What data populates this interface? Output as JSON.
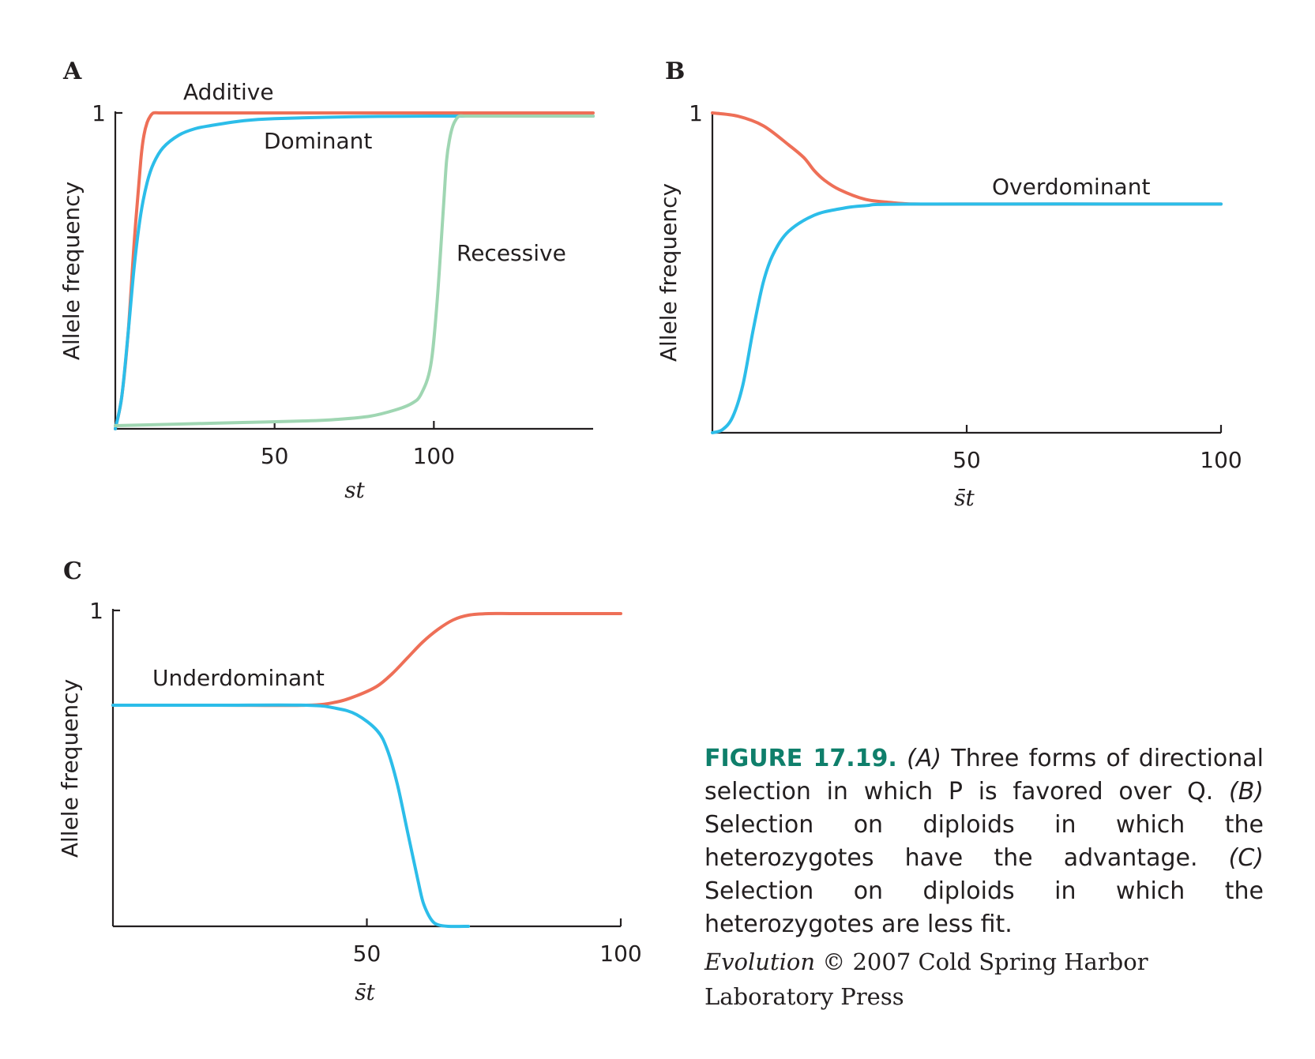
{
  "colors": {
    "orange": "#ee6f57",
    "blue": "#2cbde9",
    "green": "#9fd6b2",
    "axis": "#231f20",
    "caption_heading": "#0f7f6b"
  },
  "chart_data": [
    {
      "panel": "A",
      "type": "line",
      "ylabel": "Allele frequency",
      "xlabel": "st",
      "xlim": [
        0,
        150
      ],
      "ylim": [
        0,
        1
      ],
      "xticks": [
        50,
        100
      ],
      "yticks": [
        1
      ],
      "grid": false,
      "series": [
        {
          "name": "Additive",
          "color": "orange",
          "x": [
            0,
            2,
            4,
            6,
            8,
            9,
            10,
            11,
            12,
            14,
            16,
            20,
            30,
            50,
            100,
            150
          ],
          "y": [
            0.0,
            0.1,
            0.3,
            0.6,
            0.85,
            0.93,
            0.97,
            0.99,
            1.0,
            1.0,
            1.0,
            1.0,
            1.0,
            1.0,
            1.0,
            1.0
          ]
        },
        {
          "name": "Dominant",
          "color": "blue",
          "x": [
            0,
            2,
            4,
            6,
            8,
            10,
            12,
            15,
            20,
            25,
            30,
            40,
            50,
            75,
            100,
            150
          ],
          "y": [
            0.0,
            0.1,
            0.3,
            0.52,
            0.68,
            0.78,
            0.84,
            0.89,
            0.93,
            0.95,
            0.96,
            0.975,
            0.982,
            0.988,
            0.99,
            0.99
          ]
        },
        {
          "name": "Recessive",
          "color": "green",
          "x": [
            0,
            20,
            40,
            60,
            70,
            80,
            88,
            93,
            96,
            99,
            101,
            103,
            104,
            105,
            106,
            107,
            108,
            110,
            115,
            150
          ],
          "y": [
            0.01,
            0.015,
            0.02,
            0.025,
            0.03,
            0.04,
            0.06,
            0.08,
            0.11,
            0.2,
            0.4,
            0.7,
            0.85,
            0.92,
            0.96,
            0.98,
            0.99,
            0.99,
            0.99,
            0.99
          ]
        }
      ]
    },
    {
      "panel": "B",
      "type": "line",
      "ylabel": "Allele frequency",
      "xlabel": "s̄t",
      "xlim": [
        0,
        100
      ],
      "ylim": [
        0,
        1
      ],
      "xticks": [
        50,
        100
      ],
      "yticks": [
        1
      ],
      "grid": false,
      "series": [
        {
          "name": "Overdominant",
          "color": "orange",
          "x": [
            0,
            5,
            10,
            15,
            18,
            20,
            22,
            25,
            30,
            35,
            40,
            50,
            100
          ],
          "y": [
            1.0,
            0.99,
            0.96,
            0.9,
            0.86,
            0.82,
            0.79,
            0.76,
            0.73,
            0.72,
            0.715,
            0.715,
            0.715
          ]
        },
        {
          "color": "blue",
          "x": [
            0,
            2,
            4,
            6,
            8,
            10,
            12,
            15,
            20,
            25,
            30,
            40,
            100
          ],
          "y": [
            0.0,
            0.01,
            0.05,
            0.15,
            0.32,
            0.47,
            0.56,
            0.63,
            0.68,
            0.7,
            0.71,
            0.715,
            0.715
          ]
        }
      ]
    },
    {
      "panel": "C",
      "type": "line",
      "ylabel": "Allele frequency",
      "xlabel": "s̄t",
      "xlim": [
        0,
        100
      ],
      "ylim": [
        0,
        1
      ],
      "xticks": [
        50,
        100
      ],
      "yticks": [
        1
      ],
      "grid": false,
      "series": [
        {
          "name": "Underdominant",
          "color": "orange",
          "x": [
            0,
            20,
            38,
            44,
            48,
            52,
            55,
            58,
            61,
            64,
            67,
            70,
            74,
            80,
            100
          ],
          "y": [
            0.7,
            0.7,
            0.7,
            0.71,
            0.73,
            0.76,
            0.8,
            0.85,
            0.9,
            0.94,
            0.97,
            0.985,
            0.99,
            0.99,
            0.99
          ]
        },
        {
          "color": "blue",
          "x": [
            0,
            20,
            38,
            44,
            48,
            52,
            54,
            56,
            58,
            60,
            61,
            62,
            63,
            64,
            66,
            70
          ],
          "y": [
            0.7,
            0.7,
            0.7,
            0.69,
            0.67,
            0.62,
            0.56,
            0.45,
            0.3,
            0.15,
            0.08,
            0.04,
            0.015,
            0.005,
            0.0,
            0.0
          ]
        }
      ]
    }
  ],
  "caption": {
    "fig_num": "FIGURE 17.19.",
    "text": "(A) Three forms of directional selection in which P is favored over Q. (B) Selection on diploids in which the heterozygotes have the advantage. (C) Selection on diploids in which the heterozygotes are less fit."
  },
  "credit": {
    "title": "Evolution",
    "text": " © 2007 Cold Spring Harbor Laboratory Press"
  }
}
